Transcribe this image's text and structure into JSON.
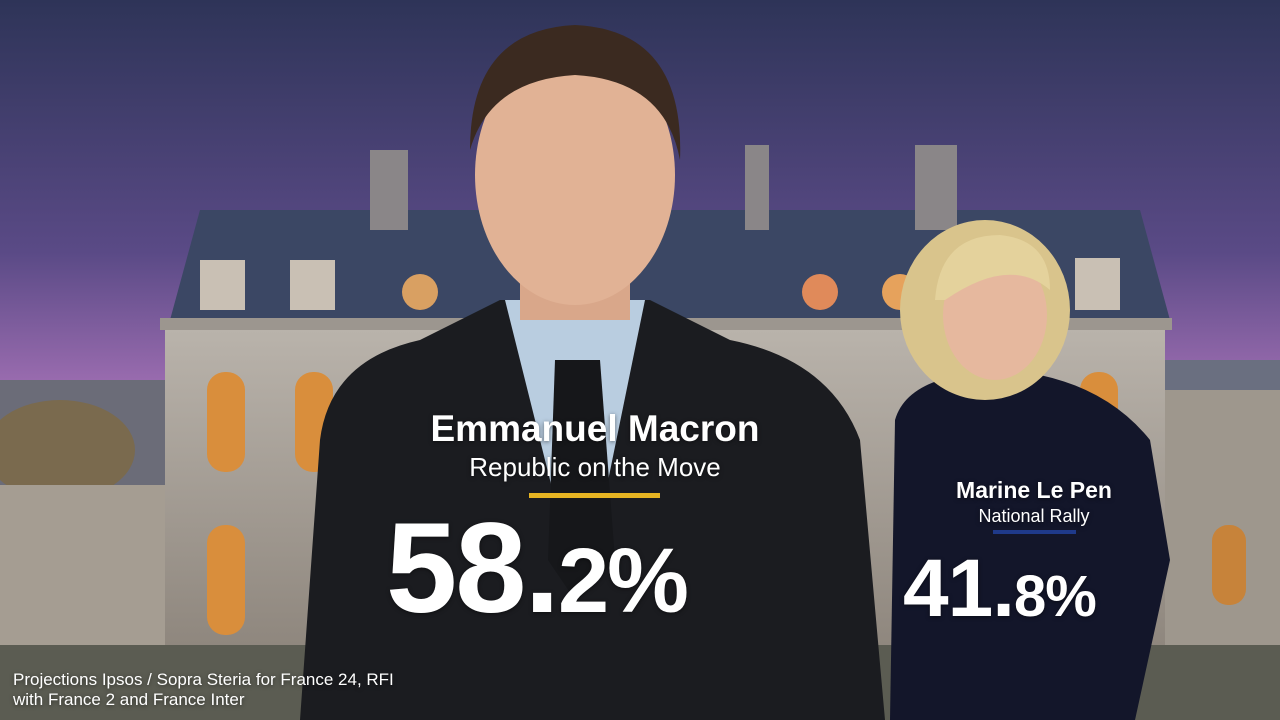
{
  "candidates": [
    {
      "name": "Emmanuel Macron",
      "party": "Republic on the Move",
      "result": "58.2%"
    },
    {
      "name": "Marine Le Pen",
      "party": "National Rally",
      "result": "41.8%"
    }
  ],
  "source": {
    "lines": [
      "Projections Ipsos / Sopra Steria for France 24, RFI",
      "with France 2 and France Inter"
    ]
  }
}
